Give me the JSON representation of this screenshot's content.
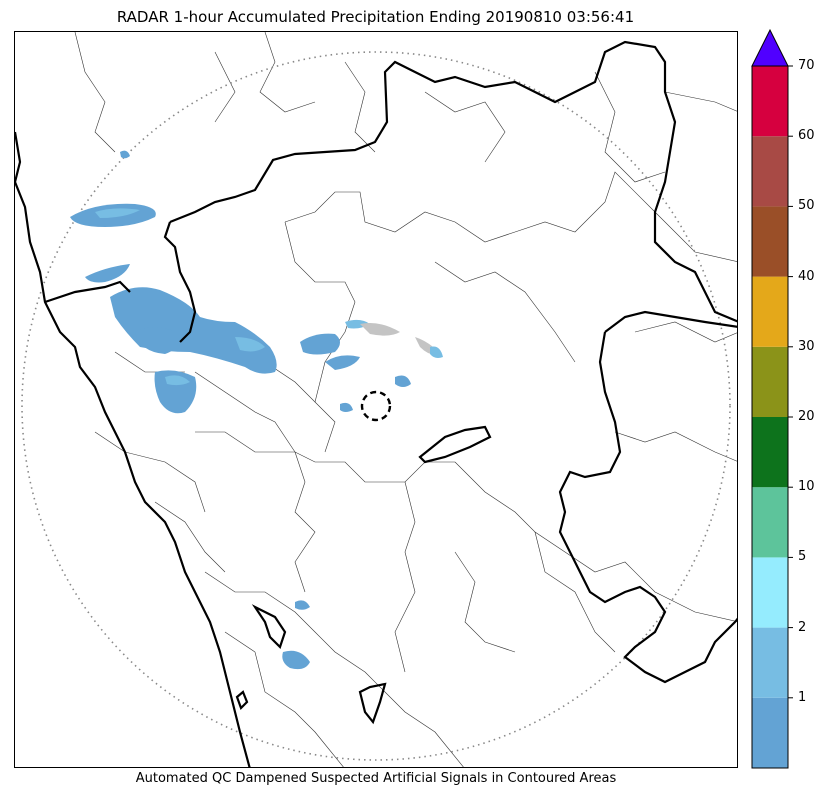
{
  "title": "RADAR 1-hour Accumulated Precipitation Ending 20190810 03:56:41",
  "footer_note": "Automated QC Dampened Suspected Artificial Signals in Contoured Areas",
  "colorbar": {
    "extend": "max",
    "over_color": "#5000ff",
    "bins": [
      {
        "color": "#63a3d4"
      },
      {
        "color": "#77bde3"
      },
      {
        "color": "#95ecfe"
      },
      {
        "color": "#5dc49b"
      },
      {
        "color": "#0d731c"
      },
      {
        "color": "#8b9319"
      },
      {
        "color": "#e4a81a"
      },
      {
        "color": "#9a4f28"
      },
      {
        "color": "#a84a45"
      },
      {
        "color": "#d6003f"
      }
    ],
    "tick_labels": [
      "1",
      "2",
      "5",
      "10",
      "20",
      "30",
      "40",
      "50",
      "60",
      "70"
    ]
  },
  "map": {
    "radar_range_ring": "dotted",
    "qc_marker": "dashed-circle",
    "precip_colors": {
      "light": "#63a3d4",
      "medium": "#77bde3",
      "clutter": "#c4c4c4"
    }
  }
}
